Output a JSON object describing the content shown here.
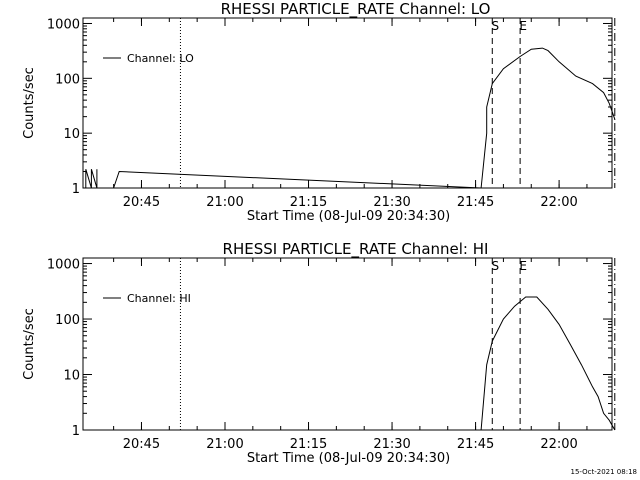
{
  "footer": {
    "timestamp": "15-Oct-2021 08:18"
  },
  "chart_data": [
    {
      "type": "line",
      "title": "RHESSI PARTICLE_RATE Channel: LO",
      "xlabel": "Start Time (08-Jul-09 20:34:30)",
      "ylabel": "Counts/sec",
      "yscale": "log",
      "ylim": [
        1,
        1000
      ],
      "xlim_minutes_after_2034_30": [
        0,
        95
      ],
      "x_ticks": [
        "20:45",
        "21:00",
        "21:15",
        "21:30",
        "21:45",
        "22:00"
      ],
      "y_ticks": [
        "1",
        "10",
        "100",
        "1000"
      ],
      "legend": {
        "label": "Channel: LO",
        "position": "top-left"
      },
      "markers": [
        {
          "time": "20:52",
          "label": "",
          "style": "dotted"
        },
        {
          "time": "21:48",
          "label": "S",
          "style": "dashed"
        },
        {
          "time": "21:53",
          "label": "E",
          "style": "dashed"
        },
        {
          "time": "22:10",
          "label": "",
          "style": "dash-dot"
        }
      ],
      "series": [
        {
          "name": "Channel: LO",
          "x": [
            "20:35",
            "20:35",
            "20:36",
            "20:36",
            "20:37",
            "20:37",
            "20:37",
            "20:40",
            "20:41",
            "21:46",
            "21:47",
            "21:47",
            "21:48",
            "21:50",
            "21:53",
            "21:55",
            "21:57",
            "21:58",
            "22:00",
            "22:03",
            "22:06",
            "22:08",
            "22:09",
            "22:10"
          ],
          "y": [
            1,
            2.2,
            1,
            2.2,
            1,
            2.2,
            1,
            1,
            2.0,
            1,
            10,
            30,
            80,
            150,
            250,
            340,
            355,
            320,
            200,
            110,
            80,
            55,
            35,
            18
          ]
        }
      ]
    },
    {
      "type": "line",
      "title": "RHESSI PARTICLE_RATE Channel: HI",
      "xlabel": "Start Time (08-Jul-09 20:34:30)",
      "ylabel": "Counts/sec",
      "yscale": "log",
      "ylim": [
        1,
        1000
      ],
      "xlim_minutes_after_2034_30": [
        0,
        95
      ],
      "x_ticks": [
        "20:45",
        "21:00",
        "21:15",
        "21:30",
        "21:45",
        "22:00"
      ],
      "y_ticks": [
        "1",
        "10",
        "100",
        "1000"
      ],
      "legend": {
        "label": "Channel: HI",
        "position": "top-left"
      },
      "markers": [
        {
          "time": "20:52",
          "label": "",
          "style": "dotted"
        },
        {
          "time": "21:48",
          "label": "S",
          "style": "dashed"
        },
        {
          "time": "21:53",
          "label": "E",
          "style": "dashed"
        },
        {
          "time": "22:10",
          "label": "",
          "style": "dash-dot"
        }
      ],
      "series": [
        {
          "name": "Channel: HI",
          "x": [
            "21:46",
            "21:47",
            "21:48",
            "21:50",
            "21:52",
            "21:54",
            "21:56",
            "21:58",
            "22:00",
            "22:02",
            "22:04",
            "22:06",
            "22:07",
            "22:08",
            "22:09",
            "22:10"
          ],
          "y": [
            1,
            15,
            40,
            100,
            170,
            250,
            250,
            150,
            80,
            35,
            15,
            6,
            4,
            2,
            1.5,
            1
          ]
        }
      ]
    }
  ]
}
